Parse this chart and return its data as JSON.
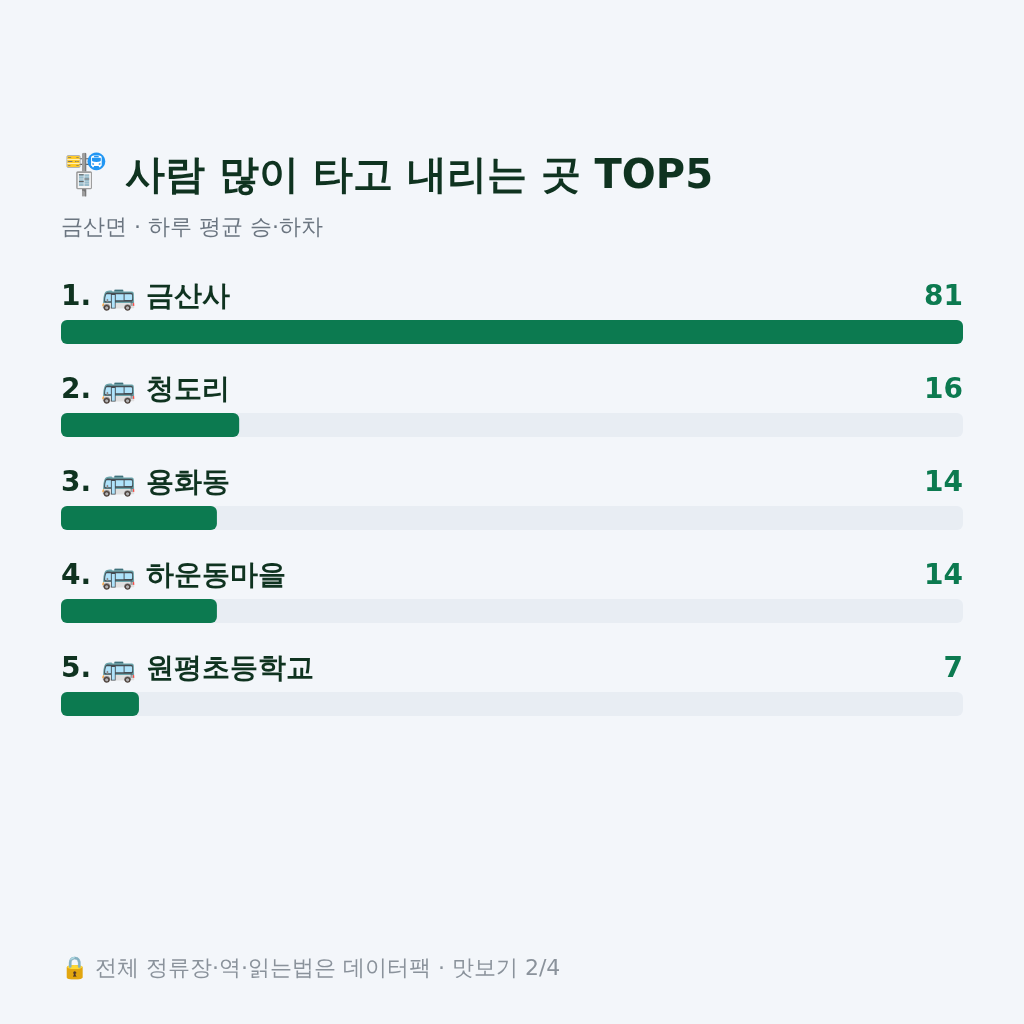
{
  "chart_data": {
    "type": "bar",
    "orientation": "horizontal",
    "title": "🚏 사람 많이 타고 내리는 곳 TOP5",
    "subtitle": "금산면 · 하루 평균 승·하차",
    "categories": [
      "1. 🚌 금산사",
      "2. 🚌 청도리",
      "3. 🚌 용화동",
      "4. 🚌 하운동마을",
      "5. 🚌 원평초등학교"
    ],
    "values": [
      81,
      16,
      14,
      14,
      7
    ],
    "color": "#0c7a50",
    "data_labels": true,
    "annotations": [
      "🔒 전체 정류장·역·읽는법은 데이터팩 · 맛보기 2/4"
    ]
  }
}
